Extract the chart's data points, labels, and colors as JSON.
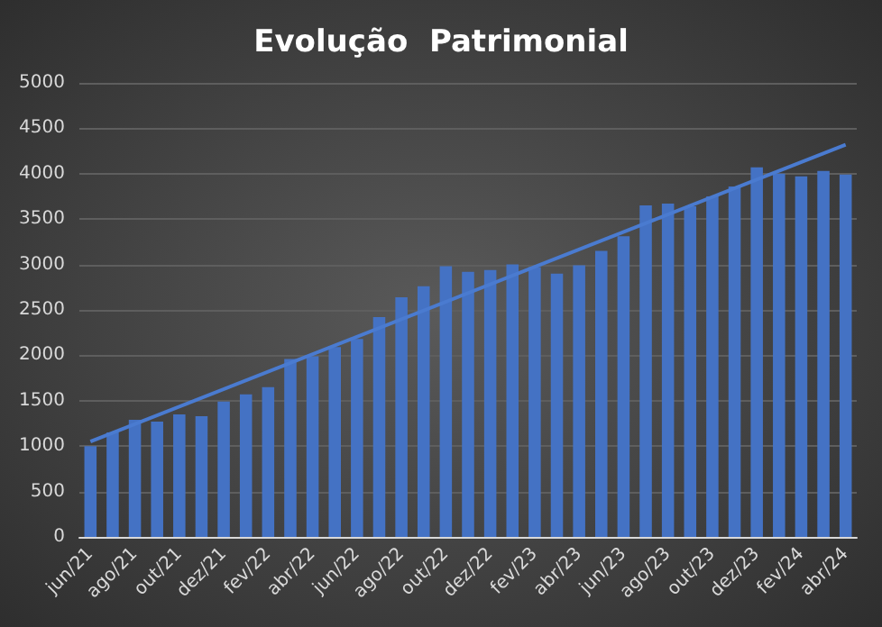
{
  "chart_data": {
    "type": "bar",
    "title": "Evolução  Patrimonial",
    "categories": [
      "jun/21",
      null,
      "ago/21",
      null,
      "out/21",
      null,
      "dez/21",
      null,
      "fev/22",
      null,
      "abr/22",
      null,
      "jun/22",
      null,
      "ago/22",
      null,
      "out/22",
      null,
      "dez/22",
      null,
      "fev/23",
      null,
      "abr/23",
      null,
      "jun/23",
      null,
      "ago/23",
      null,
      "out/23",
      null,
      "dez/23",
      null,
      "fev/24",
      null,
      "abr/24"
    ],
    "series": [
      {
        "color": "#4472c4",
        "values": [
          1000,
          1150,
          1290,
          1270,
          1350,
          1330,
          1490,
          1570,
          1650,
          1960,
          1990,
          2090,
          2180,
          2420,
          2640,
          2760,
          2980,
          2920,
          2940,
          3000,
          2970,
          2900,
          2990,
          3150,
          3310,
          3650,
          3670,
          3640,
          3750,
          3860,
          4070,
          4000,
          3970,
          4030,
          3990
        ]
      },
      {
        "type": "line",
        "color": "#4a7bd0",
        "x": [
          "jun/21",
          "abr/24"
        ],
        "values": [
          1050,
          4320
        ]
      }
    ],
    "ylim": [
      0,
      5000
    ],
    "yticks": [
      0,
      500,
      1000,
      1500,
      2000,
      2500,
      3000,
      3500,
      4000,
      4500,
      5000
    ],
    "grid": "y",
    "marker": "none"
  }
}
